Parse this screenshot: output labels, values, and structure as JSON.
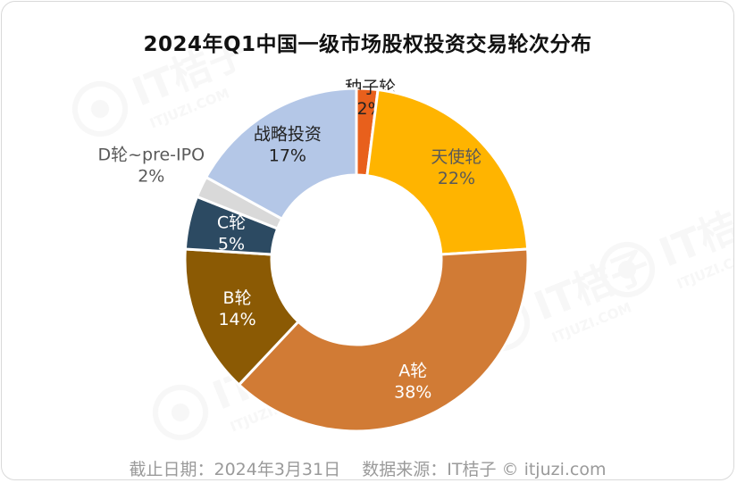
{
  "chart_data": {
    "type": "donut",
    "title": "2024年Q1中国一级市场股权投资交易轮次分布",
    "slices": [
      {
        "label": "种子轮",
        "value": 2,
        "value_label": "2%",
        "color": "#e8601c",
        "text_color": "#222222"
      },
      {
        "label": "天使轮",
        "value": 22,
        "value_label": "22%",
        "color": "#ffb400",
        "text_color": "#595959"
      },
      {
        "label": "A轮",
        "value": 38,
        "value_label": "38%",
        "color": "#d17b35",
        "text_color": "#ffffff"
      },
      {
        "label": "B轮",
        "value": 14,
        "value_label": "14%",
        "color": "#8b5a04",
        "text_color": "#ffffff"
      },
      {
        "label": "C轮",
        "value": 5,
        "value_label": "5%",
        "color": "#2c4a62",
        "text_color": "#ffffff"
      },
      {
        "label": "D轮~pre-IPO",
        "value": 2,
        "value_label": "2%",
        "color": "#d9d9d9",
        "text_color": "#595959"
      },
      {
        "label": "战略投资",
        "value": 17,
        "value_label": "17%",
        "color": "#b4c7e7",
        "text_color": "#222222"
      }
    ]
  },
  "footer": {
    "date": "截止日期：2024年3月31日",
    "source": "数据来源：IT桔子 © itjuzi.com"
  },
  "watermark": {
    "brand": "IT桔子",
    "domain": "ITJUZI.COM"
  }
}
